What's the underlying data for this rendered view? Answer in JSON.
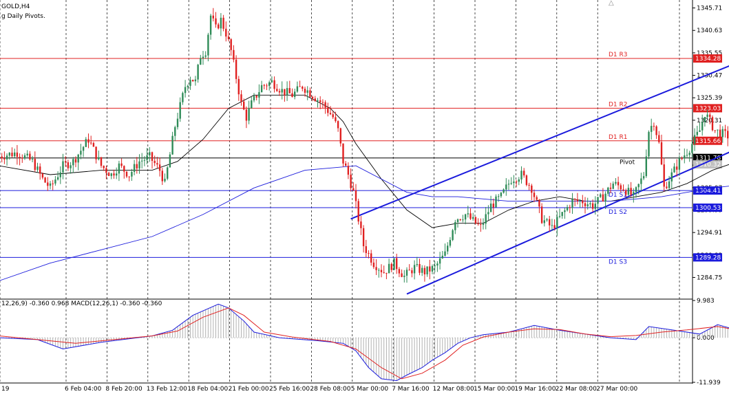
{
  "header": {
    "symbol_label": "GOLD,H4",
    "indicator_label": "g Daily Pivots."
  },
  "macd_label": "12,26,9) -0.360 0.968 MACD(12,26,1) -0.360 -0.360",
  "colors": {
    "bull": "#2e8b57",
    "bear": "#e02020",
    "pivot_red": "#e02020",
    "pivot_blue": "#1a1adc",
    "pivot_black": "#000000",
    "ma_fast": "#000000",
    "ma_slow": "#1a1adc",
    "channel": "#1a1adc",
    "macd_blue": "#1a1adc",
    "macd_red": "#e02020",
    "macd_hist": "#b0b0b0",
    "grid": "#000000",
    "bid_label_bg": "#c0c0c0"
  },
  "icons": {
    "maximize": "triangle-up-icon"
  },
  "chart_data": [
    {
      "type": "candlestick",
      "title": "GOLD,H4",
      "ylim": [
        1280.0,
        1347.2
      ],
      "y_ticks": [
        1345.71,
        1340.63,
        1335.55,
        1330.47,
        1325.39,
        1320.31,
        1315.23,
        1310.15,
        1305.07,
        1299.99,
        1294.91,
        1289.83,
        1284.75
      ],
      "x_tick_labels": [
        "19",
        "6 Feb 04:00",
        "8 Feb 20:00",
        "13 Feb 12:00",
        "18 Feb 04:00",
        "21 Feb 00:00",
        "25 Feb 16:00",
        "28 Feb 08:00",
        "5 Mar 00:00",
        "7 Mar 16:00",
        "12 Mar 08:00",
        "15 Mar 00:00",
        "19 Mar 16:00",
        "22 Mar 08:00",
        "27 Mar 00:00"
      ],
      "grid": "vertical dashed",
      "pivot_levels": [
        {
          "name": "D1 R3",
          "value": 1334.28,
          "color": "red"
        },
        {
          "name": "D1 R2",
          "value": 1323.03,
          "color": "red"
        },
        {
          "name": "D1 R1",
          "value": 1315.66,
          "color": "red"
        },
        {
          "name": "Pivot",
          "value": 1311.78,
          "color": "black"
        },
        {
          "name": "D1 S1",
          "value": 1304.41,
          "color": "blue"
        },
        {
          "name": "D1 S2",
          "value": 1300.53,
          "color": "blue"
        },
        {
          "name": "D1 S3",
          "value": 1289.28,
          "color": "blue"
        }
      ],
      "current_price": 1310.32,
      "waypoints": [
        [
          0,
          1312
        ],
        [
          8,
          1313
        ],
        [
          14,
          1311
        ],
        [
          18,
          1307
        ],
        [
          21,
          1305
        ],
        [
          26,
          1310
        ],
        [
          30,
          1311
        ],
        [
          36,
          1316
        ],
        [
          41,
          1310
        ],
        [
          45,
          1308
        ],
        [
          48,
          1310
        ],
        [
          52,
          1308
        ],
        [
          56,
          1311
        ],
        [
          60,
          1312
        ],
        [
          64,
          1309
        ],
        [
          66,
          1306
        ],
        [
          70,
          1319
        ],
        [
          74,
          1328
        ],
        [
          76,
          1330
        ],
        [
          78,
          1329
        ],
        [
          80,
          1335
        ],
        [
          82,
          1336
        ],
        [
          84,
          1344
        ],
        [
          86,
          1341
        ],
        [
          88,
          1343
        ],
        [
          90,
          1340
        ],
        [
          92,
          1336
        ],
        [
          94,
          1330
        ],
        [
          96,
          1324
        ],
        [
          98,
          1321
        ],
        [
          100,
          1324
        ],
        [
          104,
          1328
        ],
        [
          108,
          1329
        ],
        [
          112,
          1327
        ],
        [
          116,
          1326
        ],
        [
          120,
          1328
        ],
        [
          124,
          1326
        ],
        [
          128,
          1324
        ],
        [
          132,
          1321
        ],
        [
          134,
          1318
        ],
        [
          136,
          1311
        ],
        [
          138,
          1308
        ],
        [
          140,
          1304
        ],
        [
          142,
          1298
        ],
        [
          144,
          1292
        ],
        [
          148,
          1288
        ],
        [
          152,
          1286
        ],
        [
          156,
          1288
        ],
        [
          160,
          1285
        ],
        [
          164,
          1287
        ],
        [
          168,
          1286
        ],
        [
          172,
          1287
        ],
        [
          176,
          1290
        ],
        [
          180,
          1298
        ],
        [
          184,
          1299
        ],
        [
          188,
          1297
        ],
        [
          190,
          1296
        ],
        [
          194,
          1301
        ],
        [
          198,
          1303
        ],
        [
          202,
          1307
        ],
        [
          206,
          1308
        ],
        [
          210,
          1305
        ],
        [
          214,
          1298
        ],
        [
          218,
          1296
        ],
        [
          222,
          1299
        ],
        [
          226,
          1302
        ],
        [
          230,
          1302
        ],
        [
          234,
          1301
        ],
        [
          238,
          1303
        ],
        [
          242,
          1306
        ],
        [
          246,
          1305
        ],
        [
          250,
          1303
        ],
        [
          254,
          1308
        ],
        [
          256,
          1318
        ],
        [
          258,
          1320
        ],
        [
          260,
          1315
        ],
        [
          262,
          1305
        ],
        [
          264,
          1307
        ],
        [
          268,
          1311
        ],
        [
          272,
          1314
        ],
        [
          276,
          1318
        ],
        [
          278,
          1322
        ],
        [
          280,
          1320
        ],
        [
          282,
          1318
        ],
        [
          286,
          1317
        ],
        [
          290,
          1316
        ],
        [
          292,
          1313
        ],
        [
          294,
          1310
        ],
        [
          296,
          1311
        ]
      ],
      "series": [
        {
          "name": "MA fast",
          "x": [
            0,
            20,
            40,
            60,
            70,
            80,
            90,
            100,
            110,
            120,
            130,
            135,
            140,
            150,
            160,
            170,
            180,
            190,
            200,
            210,
            220,
            230,
            240,
            250,
            260,
            270,
            280,
            290,
            296
          ],
          "values": [
            1310,
            1308,
            1309,
            1309,
            1311,
            1316,
            1323,
            1326,
            1326,
            1326,
            1323,
            1320,
            1315,
            1307,
            1300,
            1296,
            1297,
            1297,
            1300,
            1302,
            1303,
            1302,
            1302,
            1303,
            1304,
            1306,
            1309,
            1311,
            1311
          ]
        },
        {
          "name": "MA slow",
          "x": [
            0,
            20,
            40,
            60,
            80,
            100,
            120,
            140,
            150,
            160,
            170,
            180,
            200,
            220,
            240,
            260,
            280,
            296
          ],
          "values": [
            1284,
            1288,
            1291,
            1294,
            1299,
            1305,
            1309,
            1310,
            1307,
            1304,
            1303,
            1303,
            1302,
            1302,
            1302,
            1303,
            1305,
            1306
          ]
        }
      ],
      "channel": {
        "upper": [
          [
            138,
            1298
          ],
          [
            312,
            1338.5
          ]
        ],
        "lower": [
          [
            160,
            1281
          ],
          [
            312,
            1319.5
          ]
        ]
      }
    },
    {
      "type": "line",
      "title": "MACD(12,26,9)",
      "ylim": [
        -11.939,
        9.983
      ],
      "y_ticks": [
        9.983,
        0.0,
        -11.939
      ],
      "series": [
        {
          "name": "macd",
          "x": [
            0,
            15,
            25,
            40,
            60,
            68,
            76,
            86,
            90,
            96,
            100,
            110,
            125,
            135,
            140,
            145,
            150,
            156,
            160,
            166,
            170,
            175,
            180,
            185,
            190,
            200,
            210,
            220,
            230,
            240,
            250,
            255,
            265,
            275,
            282,
            290,
            296
          ],
          "values": [
            0,
            -0.5,
            -3,
            -1.2,
            0.5,
            2,
            6,
            9,
            8,
            4.5,
            1.5,
            0,
            -0.8,
            -1.5,
            -3.5,
            -8,
            -11,
            -11.5,
            -10,
            -8,
            -6,
            -4,
            -1.5,
            0,
            0.8,
            1.5,
            3.3,
            2,
            1,
            0,
            -0.5,
            3,
            2,
            1,
            3.5,
            2,
            0.2
          ]
        },
        {
          "name": "signal",
          "x": [
            0,
            15,
            30,
            45,
            60,
            70,
            80,
            90,
            96,
            104,
            115,
            130,
            140,
            150,
            158,
            166,
            175,
            182,
            190,
            200,
            210,
            220,
            230,
            240,
            250,
            260,
            270,
            282,
            290,
            296
          ],
          "values": [
            0.5,
            -0.5,
            -1.5,
            -0.5,
            0.5,
            1.8,
            5.5,
            8,
            6,
            1.5,
            0.2,
            -1,
            -3,
            -8,
            -11,
            -9.5,
            -6,
            -2,
            0.2,
            1.5,
            2.4,
            2.2,
            1,
            0.3,
            0.6,
            1.5,
            2.1,
            3,
            2,
            1
          ]
        }
      ]
    }
  ]
}
